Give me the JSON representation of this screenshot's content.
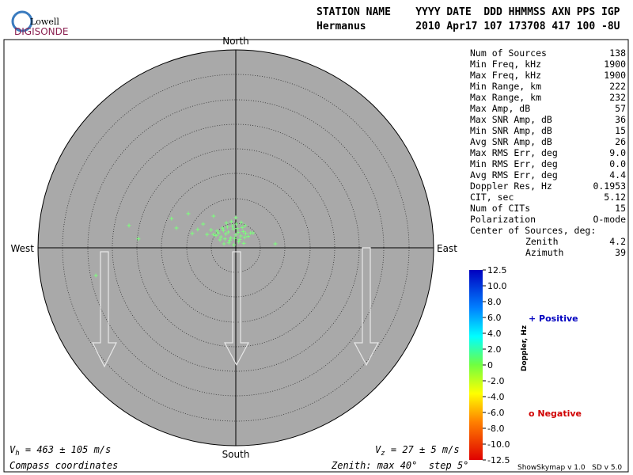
{
  "logo": {
    "line1": "Lowell",
    "line2": "DIGISONDE"
  },
  "header": {
    "line1": "STATION NAME    YYYY DATE  DDD HHMMSS AXN PPS IGP",
    "line2": "Hermanus        2010 Apr17 107 173708 417 100 -8U"
  },
  "compass": {
    "north": "North",
    "south": "South",
    "east": "East",
    "west": "West"
  },
  "skymap": {
    "rmax": 40,
    "color": "#7dff7d",
    "east": [
      -4,
      -3.5,
      -3,
      -2.5,
      -2,
      -1.5,
      -1,
      -0.5,
      0,
      0.5,
      1,
      1.5,
      2,
      -3.2,
      -2.2,
      -1.2,
      -0.2,
      0.8,
      1.8,
      -2.7,
      -1.7,
      -0.7,
      0.3,
      1.3,
      -3.8,
      -2.4,
      -1.4,
      -0.4,
      0.6,
      1.6,
      -1.9,
      -0.9,
      0.1,
      1.1,
      -4.5,
      2.5,
      -5,
      3,
      -21.6,
      -13,
      -9.6,
      -19.7,
      -28.3,
      -12,
      8,
      -8.8,
      -7.7,
      -6.6,
      -4.5,
      -5.8,
      3.5,
      1.9,
      0
    ],
    "north": [
      2.5,
      3,
      2.2,
      3.5,
      2.8,
      3.2,
      2,
      3.8,
      2.6,
      3.1,
      2.4,
      3.3,
      2.9,
      1.6,
      1.8,
      1.5,
      1.9,
      1.7,
      2.1,
      4,
      4.2,
      4.4,
      3.9,
      4.1,
      3.4,
      0.8,
      1,
      0.6,
      1.2,
      0.9,
      5,
      5.3,
      4.8,
      5.1,
      2.7,
      2.3,
      3.6,
      3.0,
      4.5,
      5.9,
      6.9,
      1.8,
      -5.6,
      4,
      0.8,
      2.9,
      3.7,
      4.8,
      6.4,
      2.7,
      3,
      4.5,
      6.1
    ]
  },
  "stats": {
    "rows": [
      [
        "Num of Sources",
        "138"
      ],
      [
        "Min Freq, kHz",
        "1900"
      ],
      [
        "Max Freq, kHz",
        "1900"
      ],
      [
        "Min Range, km",
        "222"
      ],
      [
        "Max Range, km",
        "232"
      ],
      [
        "Max Amp, dB",
        "57"
      ],
      [
        "Max SNR Amp, dB",
        "36"
      ],
      [
        "Min SNR Amp, dB",
        "15"
      ],
      [
        "Avg SNR Amp, dB",
        "26"
      ],
      [
        "Max RMS Err, deg",
        "9.0"
      ],
      [
        "Min RMS Err, deg",
        "0.0"
      ],
      [
        "Avg RMS Err, deg",
        "4.4"
      ],
      [
        "Doppler Res, Hz",
        "0.1953"
      ],
      [
        "CIT, sec",
        "5.12"
      ],
      [
        "Num of CITs",
        "15"
      ],
      [
        "Polarization",
        "O-mode"
      ]
    ],
    "center_title": "Center of Sources, deg:",
    "center_rows": [
      [
        "Zenith",
        "4.2"
      ],
      [
        "Azimuth",
        "39"
      ]
    ]
  },
  "colorbar": {
    "ticks": [
      "12.5",
      "10.0",
      "8.0",
      "6.0",
      "4.0",
      "2.0",
      "0",
      "-2.0",
      "-4.0",
      "-6.0",
      "-8.0",
      "-10.0",
      "-12.5"
    ],
    "label": "Doppler, Hz",
    "positive": "+ Positive",
    "negative": "o Negative"
  },
  "footer": {
    "vh": [
      "V",
      "h",
      " = 463 ± 105 m/s"
    ],
    "vz": [
      "V",
      "z",
      " = 27 ± 5 m/s"
    ],
    "coords": "Compass coordinates",
    "zenith": "Zenith: max 40°  step 5°",
    "version": "ShowSkymap v 1.0   SD v 5.0"
  }
}
